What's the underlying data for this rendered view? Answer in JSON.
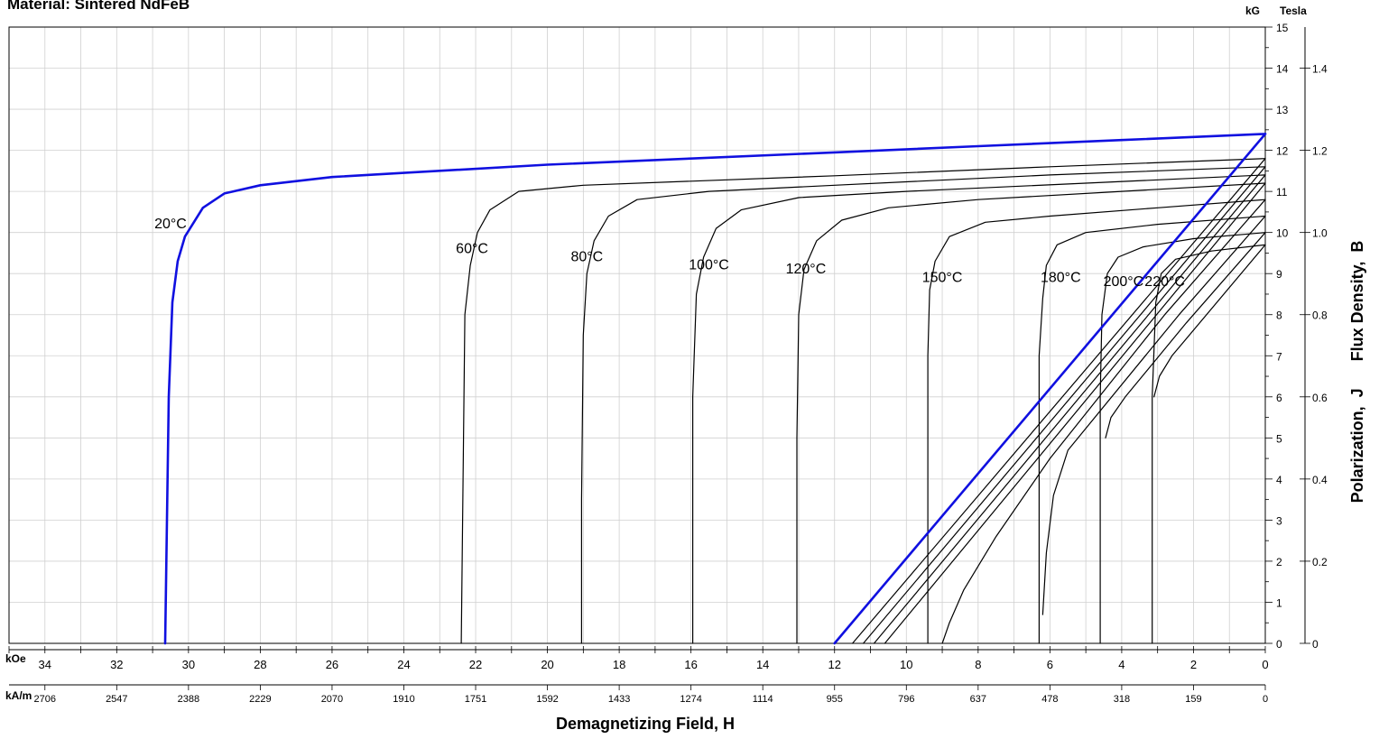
{
  "chart_data": {
    "type": "line",
    "title": "Material: Sintered NdFeB",
    "xlabel": "Demagnetizing Field, H",
    "ylabel": "Polarization,  J      Flux Density,  B",
    "x_unit_primary": "kOe",
    "x_unit_secondary": "kA/m",
    "y_unit_primary": "kG",
    "y_unit_secondary": "Tesla",
    "x_reversed": true,
    "xlim": [
      0,
      35
    ],
    "ylim": [
      0,
      15
    ],
    "x_ticks_koe": [
      34,
      32,
      30,
      28,
      26,
      24,
      22,
      20,
      18,
      16,
      14,
      12,
      10,
      8,
      6,
      4,
      2,
      0
    ],
    "x_ticks_kam": [
      {
        "koe": 34,
        "label": "2706"
      },
      {
        "koe": 32,
        "label": "2547"
      },
      {
        "koe": 30,
        "label": "2388"
      },
      {
        "koe": 28,
        "label": "2229"
      },
      {
        "koe": 26,
        "label": "2070"
      },
      {
        "koe": 24,
        "label": "1910"
      },
      {
        "koe": 22,
        "label": "1751"
      },
      {
        "koe": 20,
        "label": "1592"
      },
      {
        "koe": 18,
        "label": "1433"
      },
      {
        "koe": 16,
        "label": "1274"
      },
      {
        "koe": 14,
        "label": "1114"
      },
      {
        "koe": 12,
        "label": "955"
      },
      {
        "koe": 10,
        "label": "796"
      },
      {
        "koe": 8,
        "label": "637"
      },
      {
        "koe": 6,
        "label": "478"
      },
      {
        "koe": 4,
        "label": "318"
      },
      {
        "koe": 2,
        "label": "159"
      },
      {
        "koe": 0,
        "label": "0"
      }
    ],
    "y_ticks_kg": [
      0,
      1,
      2,
      3,
      4,
      5,
      6,
      7,
      8,
      9,
      10,
      11,
      12,
      13,
      14,
      15
    ],
    "y_ticks_tesla": [
      {
        "kg": 0,
        "label": "0"
      },
      {
        "kg": 2,
        "label": "0.2"
      },
      {
        "kg": 4,
        "label": "0.4"
      },
      {
        "kg": 6,
        "label": "0.6"
      },
      {
        "kg": 8,
        "label": "0.8"
      },
      {
        "kg": 10,
        "label": "1.0"
      },
      {
        "kg": 12,
        "label": "1.2"
      },
      {
        "kg": 14,
        "label": "1.4"
      }
    ],
    "grid": true,
    "colors": {
      "highlight": "#1010e0",
      "normal": "#000000"
    },
    "series": [
      {
        "label": "20°C",
        "highlight": true,
        "label_at": [
          30.5,
          10.1
        ],
        "points": [
          [
            0,
            12.4
          ],
          [
            4,
            12.25
          ],
          [
            8,
            12.1
          ],
          [
            12,
            11.95
          ],
          [
            16,
            11.8
          ],
          [
            20,
            11.65
          ],
          [
            24,
            11.45
          ],
          [
            26,
            11.35
          ],
          [
            28,
            11.15
          ],
          [
            29,
            10.95
          ],
          [
            29.6,
            10.6
          ],
          [
            30.1,
            9.9
          ],
          [
            30.3,
            9.3
          ],
          [
            30.45,
            8.3
          ],
          [
            30.55,
            6.0
          ],
          [
            30.6,
            3.0
          ],
          [
            30.65,
            0
          ]
        ]
      },
      {
        "label": "60°C",
        "highlight": false,
        "label_at": [
          22.1,
          9.5
        ],
        "points": [
          [
            0,
            11.8
          ],
          [
            6,
            11.6
          ],
          [
            12,
            11.38
          ],
          [
            16,
            11.25
          ],
          [
            19,
            11.15
          ],
          [
            20.8,
            11.0
          ],
          [
            21.6,
            10.55
          ],
          [
            21.95,
            10.0
          ],
          [
            22.15,
            9.2
          ],
          [
            22.3,
            8.0
          ],
          [
            22.35,
            4.0
          ],
          [
            22.4,
            0
          ]
        ]
      },
      {
        "label": "80°C",
        "highlight": false,
        "label_at": [
          18.9,
          9.3
        ],
        "points": [
          [
            0,
            11.6
          ],
          [
            6,
            11.4
          ],
          [
            12,
            11.15
          ],
          [
            15.5,
            11.0
          ],
          [
            17.5,
            10.8
          ],
          [
            18.3,
            10.4
          ],
          [
            18.7,
            9.8
          ],
          [
            18.9,
            9.0
          ],
          [
            19.0,
            7.5
          ],
          [
            19.05,
            3.5
          ],
          [
            19.05,
            0
          ]
        ]
      },
      {
        "label": "100°C",
        "highlight": false,
        "label_at": [
          15.5,
          9.1
        ],
        "points": [
          [
            0,
            11.4
          ],
          [
            5,
            11.2
          ],
          [
            10,
            11.0
          ],
          [
            13,
            10.85
          ],
          [
            14.6,
            10.55
          ],
          [
            15.3,
            10.1
          ],
          [
            15.65,
            9.4
          ],
          [
            15.85,
            8.5
          ],
          [
            15.95,
            6.0
          ],
          [
            15.95,
            0
          ]
        ]
      },
      {
        "label": "120°C",
        "highlight": false,
        "label_at": [
          12.8,
          9.0
        ],
        "points": [
          [
            0,
            11.2
          ],
          [
            4,
            11.0
          ],
          [
            8,
            10.8
          ],
          [
            10.5,
            10.6
          ],
          [
            11.8,
            10.3
          ],
          [
            12.5,
            9.8
          ],
          [
            12.85,
            9.1
          ],
          [
            13.0,
            8.0
          ],
          [
            13.05,
            5.0
          ],
          [
            13.05,
            0
          ]
        ]
      },
      {
        "label": "150°C",
        "highlight": false,
        "label_at": [
          9.0,
          8.8
        ],
        "points": [
          [
            0,
            10.8
          ],
          [
            3,
            10.6
          ],
          [
            6,
            10.4
          ],
          [
            7.8,
            10.25
          ],
          [
            8.8,
            9.9
          ],
          [
            9.2,
            9.3
          ],
          [
            9.35,
            8.6
          ],
          [
            9.4,
            7.0
          ],
          [
            9.4,
            4.0
          ],
          [
            9.4,
            0
          ]
        ]
      },
      {
        "label": "180°C",
        "highlight": false,
        "label_at": [
          5.7,
          8.8
        ],
        "points": [
          [
            0,
            10.4
          ],
          [
            3,
            10.2
          ],
          [
            5.0,
            10.0
          ],
          [
            5.8,
            9.7
          ],
          [
            6.1,
            9.2
          ],
          [
            6.2,
            8.4
          ],
          [
            6.3,
            7.0
          ],
          [
            6.3,
            3.0
          ],
          [
            6.3,
            0
          ]
        ]
      },
      {
        "label": "200°C",
        "highlight": false,
        "label_at": [
          3.95,
          8.7
        ],
        "points": [
          [
            0,
            10.0
          ],
          [
            2,
            9.85
          ],
          [
            3.4,
            9.65
          ],
          [
            4.1,
            9.4
          ],
          [
            4.4,
            9.0
          ],
          [
            4.55,
            8.0
          ],
          [
            4.6,
            6.0
          ],
          [
            4.6,
            0
          ]
        ]
      },
      {
        "label": "220°C",
        "highlight": false,
        "label_at": [
          2.8,
          8.7
        ],
        "points": [
          [
            0,
            9.7
          ],
          [
            1.5,
            9.55
          ],
          [
            2.5,
            9.35
          ],
          [
            2.9,
            9.0
          ],
          [
            3.05,
            8.3
          ],
          [
            3.15,
            6.0
          ],
          [
            3.15,
            0
          ]
        ]
      },
      {
        "label": "",
        "highlight": true,
        "points": [
          [
            0,
            12.4
          ],
          [
            12,
            0
          ]
        ]
      },
      {
        "label": "",
        "highlight": false,
        "points": [
          [
            0,
            11.8
          ],
          [
            11.5,
            0
          ]
        ]
      },
      {
        "label": "",
        "highlight": false,
        "points": [
          [
            0,
            11.6
          ],
          [
            11.2,
            0
          ]
        ]
      },
      {
        "label": "",
        "highlight": false,
        "points": [
          [
            0,
            11.4
          ],
          [
            10.9,
            0
          ]
        ]
      },
      {
        "label": "",
        "highlight": false,
        "points": [
          [
            0,
            11.2
          ],
          [
            10.6,
            0
          ]
        ]
      },
      {
        "label": "",
        "highlight": false,
        "points": [
          [
            0,
            10.8
          ],
          [
            2.8,
            8.0
          ],
          [
            6.0,
            4.5
          ],
          [
            7.5,
            2.6
          ],
          [
            8.4,
            1.3
          ],
          [
            8.8,
            0.5
          ],
          [
            9.0,
            0
          ]
        ]
      },
      {
        "label": "",
        "highlight": false,
        "points": [
          [
            0,
            10.4
          ],
          [
            2.4,
            8.0
          ],
          [
            5.5,
            4.7
          ],
          [
            5.9,
            3.6
          ],
          [
            6.1,
            2.2
          ],
          [
            6.2,
            0.7
          ]
        ]
      },
      {
        "label": "",
        "highlight": false,
        "points": [
          [
            0,
            10.0
          ],
          [
            2.2,
            7.8
          ],
          [
            3.9,
            6.0
          ],
          [
            4.3,
            5.5
          ],
          [
            4.45,
            5.0
          ]
        ]
      },
      {
        "label": "",
        "highlight": false,
        "points": [
          [
            0,
            9.7
          ],
          [
            2.6,
            7.0
          ],
          [
            2.95,
            6.5
          ],
          [
            3.1,
            6.0
          ]
        ]
      }
    ]
  }
}
